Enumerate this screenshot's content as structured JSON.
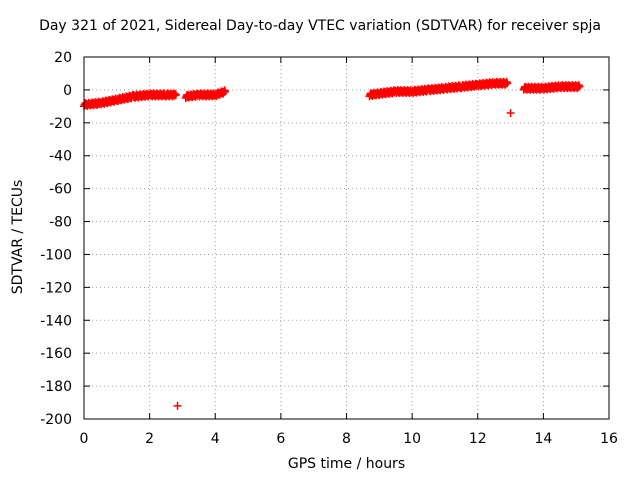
{
  "chart_data": {
    "type": "scatter",
    "title": "Day 321 of 2021, Sidereal Day-to-day VTEC variation (SDTVAR) for receiver spja",
    "xlabel": "GPS time / hours",
    "ylabel": "SDTVAR / TECUs",
    "xlim": [
      0,
      16
    ],
    "ylim": [
      -200,
      20
    ],
    "xticks": [
      0,
      2,
      4,
      6,
      8,
      10,
      12,
      14,
      16
    ],
    "yticks": [
      20,
      0,
      -20,
      -40,
      -60,
      -80,
      -100,
      -120,
      -140,
      -160,
      -180,
      -200
    ],
    "grid": true,
    "marker": "+",
    "color": "#ff0000",
    "series": [
      {
        "name": "SDTVAR",
        "segments": [
          {
            "x": [
              0.0,
              0.5,
              1.0,
              1.5,
              2.0,
              2.5,
              2.8
            ],
            "y": [
              -9,
              -8,
              -6,
              -4,
              -3,
              -3,
              -3
            ]
          },
          {
            "x": [
              3.1,
              3.5,
              4.0,
              4.3
            ],
            "y": [
              -4,
              -3,
              -3,
              -1
            ]
          },
          {
            "x": [
              8.7,
              9.5,
              10.0,
              10.5,
              11.0,
              11.5,
              12.0,
              12.5,
              12.9
            ],
            "y": [
              -3,
              -1,
              -1,
              0,
              1,
              2,
              3,
              4,
              4
            ]
          },
          {
            "x": [
              13.4,
              14.0,
              14.5,
              15.1
            ],
            "y": [
              1,
              1,
              2,
              2
            ]
          }
        ],
        "outliers": [
          {
            "x": 2.85,
            "y": -192
          },
          {
            "x": 13.0,
            "y": -14
          }
        ]
      }
    ]
  }
}
